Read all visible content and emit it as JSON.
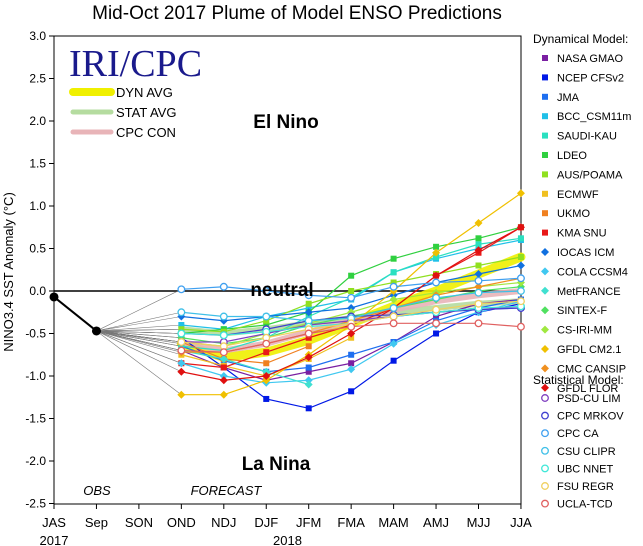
{
  "chart_data": {
    "type": "line",
    "title": "Mid-Oct 2017 Plume of Model ENSO Predictions",
    "ylabel": "NINO3.4 SST Anomaly (°C)",
    "ylim": [
      -2.5,
      3.0
    ],
    "yticks": [
      "3.0",
      "2.5",
      "2.0",
      "1.5",
      "1.0",
      "0.5",
      "0.0",
      "-0.5",
      "-1.0",
      "-1.5",
      "-2.0",
      "-2.5"
    ],
    "categories": [
      "JAS",
      "Sep",
      "SON",
      "OND",
      "NDJ",
      "DJF",
      "JFM",
      "FMA",
      "MAM",
      "AMJ",
      "MJJ",
      "JJA"
    ],
    "year_labels": [
      {
        "text": "2017",
        "cat": 0
      },
      {
        "text": "2018",
        "cat": 5.5
      }
    ],
    "logo": "IRI/CPC",
    "regions": {
      "el_nino": "El Nino",
      "neutral": "neutral",
      "la_nina": "La Nina"
    },
    "period_labels": {
      "obs": "OBS",
      "forecast": "FORECAST"
    },
    "observed": {
      "x": [
        "JAS",
        "Sep"
      ],
      "values": [
        -0.07,
        -0.47
      ],
      "color": "#000000"
    },
    "averages": [
      {
        "name": "DYN AVG",
        "color": "#f0f000",
        "values": [
          null,
          null,
          null,
          -0.62,
          -0.78,
          -0.72,
          -0.58,
          -0.38,
          -0.18,
          0.0,
          0.2,
          0.4
        ]
      },
      {
        "name": "STAT AVG",
        "color": "#b5dca0",
        "values": [
          null,
          null,
          null,
          -0.45,
          -0.5,
          -0.45,
          -0.38,
          -0.32,
          -0.25,
          -0.2,
          -0.15,
          -0.12
        ]
      },
      {
        "name": "CPC CON",
        "color": "#e8b4b8",
        "values": [
          null,
          null,
          null,
          -0.6,
          -0.7,
          -0.62,
          -0.48,
          -0.35,
          -0.22,
          -0.12,
          -0.05,
          0.0
        ]
      }
    ],
    "legend_dynamical_title": "Dynamical Model:",
    "legend_statistical_title": "Statistical Model:",
    "series": [
      {
        "name": "NASA GMAO",
        "group": "dyn",
        "marker": "square",
        "color": "#7a1fa2",
        "values": [
          null,
          null,
          null,
          -0.7,
          -0.9,
          -1.05,
          -0.95,
          -0.85,
          -0.6,
          -0.3,
          -0.15,
          -0.1
        ]
      },
      {
        "name": "NCEP CFSv2",
        "group": "dyn",
        "marker": "square",
        "color": "#0018e6",
        "values": [
          null,
          null,
          null,
          -0.55,
          -0.9,
          -1.27,
          -1.38,
          -1.18,
          -0.82,
          -0.5,
          -0.25,
          -0.15
        ]
      },
      {
        "name": "JMA",
        "group": "dyn",
        "marker": "square",
        "color": "#1e6ff0",
        "values": [
          null,
          null,
          null,
          -0.65,
          -0.82,
          -0.95,
          -0.9,
          -0.75,
          -0.6,
          -0.35,
          -0.2,
          -0.1
        ]
      },
      {
        "name": "BCC_CSM11m",
        "group": "dyn",
        "marker": "square",
        "color": "#20c0e8",
        "values": [
          null,
          null,
          null,
          -0.4,
          -0.45,
          -0.3,
          -0.2,
          -0.1,
          0.22,
          0.38,
          0.5,
          0.6
        ]
      },
      {
        "name": "SAUDI-KAU",
        "group": "dyn",
        "marker": "square",
        "color": "#2ae0c0",
        "values": [
          null,
          null,
          null,
          -0.65,
          -0.7,
          -0.55,
          -0.3,
          -0.08,
          0.22,
          0.4,
          0.55,
          0.62
        ]
      },
      {
        "name": "LDEO",
        "group": "dyn",
        "marker": "square",
        "color": "#30d040",
        "values": [
          null,
          null,
          null,
          -0.5,
          -0.45,
          -0.4,
          -0.25,
          0.18,
          0.38,
          0.52,
          0.62,
          0.75
        ]
      },
      {
        "name": "AUS/POAMA",
        "group": "dyn",
        "marker": "square",
        "color": "#90e020",
        "values": [
          null,
          null,
          null,
          -0.45,
          -0.48,
          -0.35,
          -0.15,
          0.0,
          0.1,
          0.2,
          0.3,
          0.4
        ]
      },
      {
        "name": "ECMWF",
        "group": "dyn",
        "marker": "square",
        "color": "#f0c020",
        "values": [
          null,
          null,
          null,
          -0.75,
          -0.88,
          -1.0,
          -0.8,
          -0.55,
          null,
          null,
          null,
          null
        ]
      },
      {
        "name": "UKMO",
        "group": "dyn",
        "marker": "square",
        "color": "#f08020",
        "values": [
          null,
          null,
          null,
          -0.6,
          -0.8,
          -0.85,
          -0.65,
          null,
          null,
          null,
          null,
          null
        ]
      },
      {
        "name": "KMA SNU",
        "group": "dyn",
        "marker": "square",
        "color": "#e81818",
        "values": [
          null,
          null,
          null,
          -0.85,
          -0.9,
          -0.72,
          -0.55,
          -0.4,
          -0.2,
          0.18,
          0.45,
          0.75
        ]
      },
      {
        "name": "IOCAS ICM",
        "group": "dyn",
        "marker": "diamond",
        "color": "#1070e0",
        "values": [
          null,
          null,
          null,
          -0.3,
          -0.35,
          -0.3,
          -0.25,
          -0.2,
          -0.05,
          0.1,
          0.2,
          0.3
        ]
      },
      {
        "name": "COLA CCSM4",
        "group": "dyn",
        "marker": "diamond",
        "color": "#40c8f0",
        "values": [
          null,
          null,
          null,
          -0.85,
          -1.0,
          -1.08,
          -1.05,
          -0.92,
          -0.62,
          -0.4,
          -0.25,
          -0.12
        ]
      },
      {
        "name": "MetFRANCE",
        "group": "dyn",
        "marker": "diamond",
        "color": "#40e0d0",
        "values": [
          null,
          null,
          null,
          -0.7,
          -0.8,
          -0.95,
          -1.1,
          null,
          null,
          null,
          null,
          null
        ]
      },
      {
        "name": "SINTEX-F",
        "group": "dyn",
        "marker": "diamond",
        "color": "#50e060",
        "values": [
          null,
          null,
          null,
          -0.55,
          -0.62,
          -0.55,
          -0.4,
          -0.3,
          -0.2,
          -0.1,
          0.0,
          0.05
        ]
      },
      {
        "name": "CS-IRI-MM",
        "group": "dyn",
        "marker": "diamond",
        "color": "#a0e840",
        "values": [
          null,
          null,
          null,
          -0.6,
          -0.65,
          -0.5,
          -0.38,
          -0.25,
          -0.1,
          -0.02,
          0.05,
          0.1
        ]
      },
      {
        "name": "GFDL CM2.1",
        "group": "dyn",
        "marker": "diamond",
        "color": "#f0c000",
        "values": [
          null,
          null,
          null,
          -1.22,
          -1.22,
          -1.05,
          -0.75,
          -0.4,
          0.0,
          0.45,
          0.8,
          1.15
        ]
      },
      {
        "name": "CMC CANSIP",
        "group": "dyn",
        "marker": "diamond",
        "color": "#f09020",
        "values": [
          null,
          null,
          null,
          -0.72,
          -0.72,
          -0.62,
          -0.5,
          -0.35,
          -0.2,
          -0.05,
          0.05,
          0.15
        ]
      },
      {
        "name": "GFDL FLOR",
        "group": "dyn",
        "marker": "diamond",
        "color": "#e01010",
        "values": [
          null,
          null,
          null,
          -0.95,
          -1.05,
          -1.0,
          -0.78,
          -0.5,
          -0.2,
          0.18,
          0.48,
          0.75
        ]
      },
      {
        "name": "PSD-CU LIM",
        "group": "stat",
        "marker": "circle",
        "color": "#8040c0",
        "values": [
          null,
          null,
          null,
          -0.6,
          -0.6,
          -0.5,
          -0.4,
          -0.35,
          -0.3,
          -0.25,
          -0.2,
          -0.2
        ]
      },
      {
        "name": "CPC MRKOV",
        "group": "stat",
        "marker": "circle",
        "color": "#4040d0",
        "values": [
          null,
          null,
          null,
          -0.5,
          -0.52,
          -0.45,
          -0.35,
          -0.3,
          -0.28,
          -0.25,
          -0.22,
          -0.2
        ]
      },
      {
        "name": "CPC CA",
        "group": "stat",
        "marker": "circle",
        "color": "#40a0f0",
        "values": [
          null,
          null,
          null,
          0.02,
          0.05,
          0.0,
          -0.05,
          -0.08,
          0.05,
          0.1,
          0.12,
          0.15
        ]
      },
      {
        "name": "CSU CLIPR",
        "group": "stat",
        "marker": "circle",
        "color": "#40c0e8",
        "values": [
          null,
          null,
          null,
          -0.25,
          -0.3,
          -0.3,
          -0.35,
          -0.32,
          -0.2,
          -0.08,
          -0.02,
          0.0
        ]
      },
      {
        "name": "UBC NNET",
        "group": "stat",
        "marker": "circle",
        "color": "#40e8d8",
        "values": [
          null,
          null,
          null,
          -0.5,
          -0.52,
          -0.48,
          -0.42,
          -0.38,
          -0.3,
          -0.25,
          -0.2,
          -0.18
        ]
      },
      {
        "name": "FSU REGR",
        "group": "stat",
        "marker": "circle",
        "color": "#f0d060",
        "values": [
          null,
          null,
          null,
          -0.6,
          -0.65,
          -0.55,
          -0.45,
          -0.38,
          -0.3,
          -0.22,
          -0.15,
          -0.12
        ]
      },
      {
        "name": "UCLA-TCD",
        "group": "stat",
        "marker": "circle",
        "color": "#e06060",
        "values": [
          null,
          null,
          null,
          -0.7,
          -0.72,
          -0.62,
          -0.5,
          -0.42,
          -0.38,
          -0.38,
          -0.38,
          -0.42
        ]
      }
    ]
  }
}
